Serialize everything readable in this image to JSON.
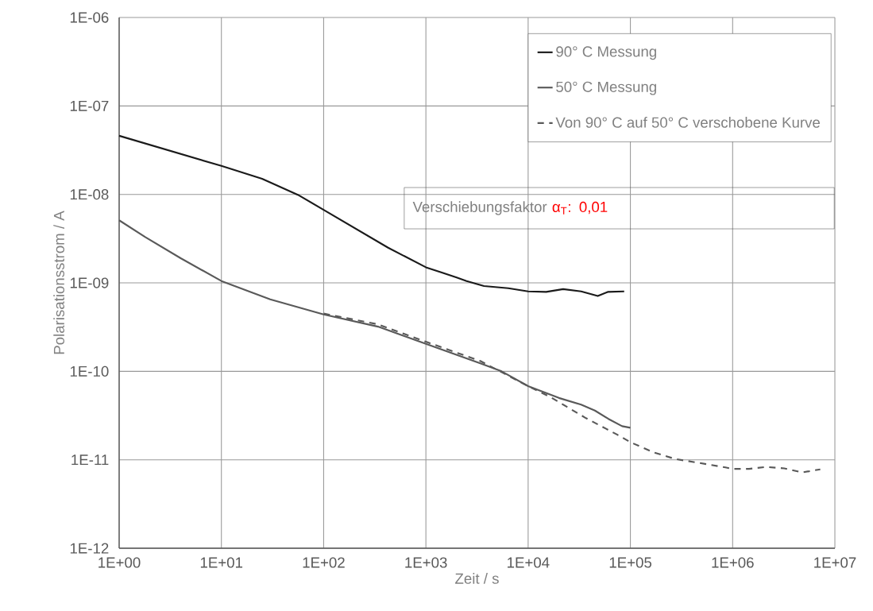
{
  "chart_data": {
    "type": "line",
    "xlabel": "Zeit / s",
    "ylabel": "Polarisationsstrom / A",
    "log": "xy",
    "grid": true,
    "legend": "top right",
    "marker": "none",
    "xlim": [
      1,
      10000000
    ],
    "ylim": [
      1e-12,
      1e-06
    ],
    "xticks": [
      {
        "value": 1,
        "label": "1E+00"
      },
      {
        "value": 10,
        "label": "1E+01"
      },
      {
        "value": 100,
        "label": "1E+02"
      },
      {
        "value": 1000,
        "label": "1E+03"
      },
      {
        "value": 10000,
        "label": "1E+04"
      },
      {
        "value": 100000,
        "label": "1E+05"
      },
      {
        "value": 1000000,
        "label": "1E+06"
      },
      {
        "value": 10000000,
        "label": "1E+07"
      }
    ],
    "yticks": [
      {
        "value": 1e-12,
        "label": "1E-12"
      },
      {
        "value": 1e-11,
        "label": "1E-11"
      },
      {
        "value": 1e-10,
        "label": "1E-10"
      },
      {
        "value": 1e-09,
        "label": "1E-09"
      },
      {
        "value": 1e-08,
        "label": "1E-08"
      },
      {
        "value": 1e-07,
        "label": "1E-07"
      },
      {
        "value": 1e-06,
        "label": "1E-06"
      }
    ],
    "series": [
      {
        "name": "90° C Messung",
        "color": "#1a1a1a",
        "line_style": "solid",
        "x": [
          1,
          10,
          25,
          56,
          100,
          427,
          1000,
          1450,
          2000,
          2500,
          3700,
          6400,
          10000,
          15000,
          22000,
          33000,
          48000,
          60000,
          87000
        ],
        "values": [
          4.6e-08,
          2.1e-08,
          1.5e-08,
          9.9e-09,
          6.7e-09,
          2.5e-09,
          1.5e-09,
          1.3e-09,
          1.15e-09,
          1.05e-09,
          9.2e-10,
          8.7e-10,
          8e-10,
          7.9e-10,
          8.5e-10,
          8e-10,
          7.1e-10,
          7.9e-10,
          8e-10
        ]
      },
      {
        "name": "50° C Messung",
        "color": "#595959",
        "line_style": "solid",
        "x": [
          1,
          1.8,
          4,
          10,
          30,
          100,
          340,
          1000,
          3400,
          5500,
          10000,
          20000,
          33000,
          45000,
          61000,
          83000,
          100000
        ],
        "values": [
          5.1e-09,
          3.3e-09,
          1.9e-09,
          1.05e-09,
          6.5e-10,
          4.4e-10,
          3.2e-10,
          2.05e-10,
          1.23e-10,
          1e-10,
          6.8e-11,
          5e-11,
          4.2e-11,
          3.6e-11,
          2.9e-11,
          2.4e-11,
          2.3e-11
        ]
      },
      {
        "name": "Von 90° C auf 50° C verschobene Kurve",
        "color": "#595959",
        "line_style": "dashed",
        "x": [
          100,
          340,
          1000,
          3400,
          10000,
          16600,
          36000,
          74000,
          100000,
          170000,
          275000,
          450000,
          850000,
          1000000,
          1450000,
          2100000,
          3200000,
          4800000,
          7200000
        ],
        "values": [
          4.5e-10,
          3.4e-10,
          2.16e-10,
          1.31e-10,
          6.8e-11,
          5.1e-11,
          3e-11,
          1.93e-11,
          1.58e-11,
          1.21e-11,
          1.02e-11,
          9.3e-12,
          8.2e-12,
          7.9e-12,
          7.9e-12,
          8.3e-12,
          8e-12,
          7.2e-12,
          7.8e-12
        ]
      }
    ],
    "annotations": [
      "Verschiebungsfaktor",
      "α$_{T}$:  0,01"
    ]
  }
}
